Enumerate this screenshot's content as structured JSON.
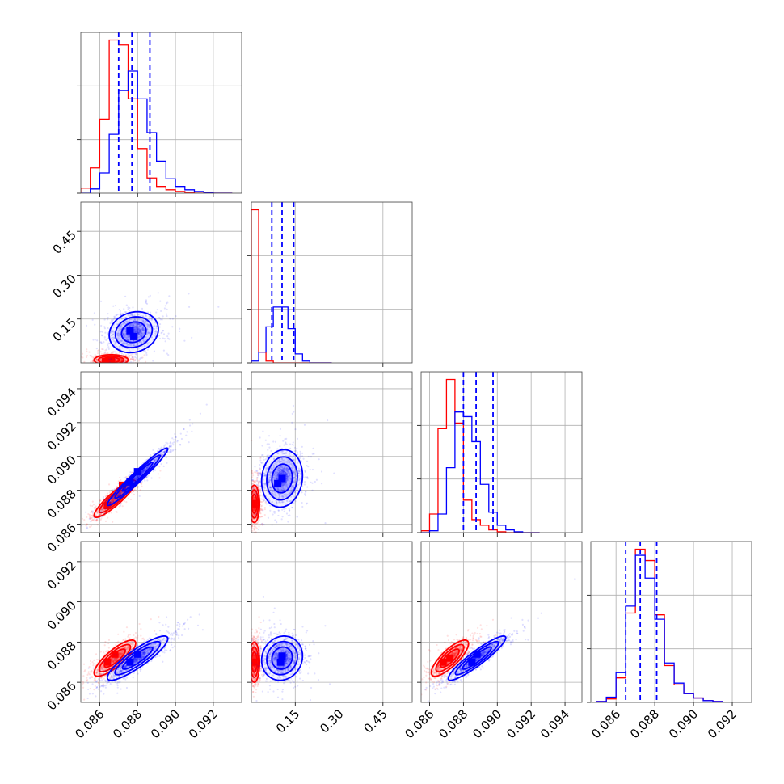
{
  "figure": {
    "type": "corner-plot",
    "colors": {
      "red": "#ff0000",
      "blue": "#0000ff"
    }
  },
  "chart_data": [
    {
      "type": "bar",
      "panel": "histogram-1",
      "grid": true,
      "x": [
        0.085,
        0.0855,
        0.086,
        0.0865,
        0.087,
        0.0875,
        0.088,
        0.0885,
        0.089,
        0.0895,
        0.09,
        0.0905,
        0.091,
        0.0915,
        0.092,
        0.0925
      ],
      "series": [
        {
          "color": "#ff0000",
          "values": [
            6,
            30,
            88,
            182,
            176,
            112,
            53,
            18,
            8,
            4,
            2,
            1,
            0,
            0,
            0,
            0
          ]
        },
        {
          "color": "#0000ff",
          "values": [
            0,
            5,
            24,
            70,
            122,
            145,
            112,
            72,
            38,
            17,
            8,
            4,
            2,
            1,
            0,
            0
          ]
        }
      ],
      "quantiles": [
        0.087,
        0.0877,
        0.08865
      ],
      "xlim": [
        0.085,
        0.0935
      ],
      "xticks": [
        0.086,
        0.088,
        0.09,
        0.092
      ]
    },
    {
      "type": "bar",
      "panel": "histogram-2",
      "grid": true,
      "x": [
        0.0,
        0.025,
        0.05,
        0.075,
        0.1,
        0.125,
        0.15,
        0.175,
        0.2,
        0.225,
        0.25
      ],
      "series": [
        {
          "color": "#ff0000",
          "values": [
            170,
            12,
            2,
            0,
            0,
            0,
            0,
            0,
            0,
            0,
            0
          ]
        },
        {
          "color": "#0000ff",
          "values": [
            2,
            12,
            40,
            62,
            62,
            38,
            10,
            2,
            0,
            0,
            0
          ]
        }
      ],
      "quantiles": [
        0.07,
        0.105,
        0.145
      ],
      "xlim": [
        0.0,
        0.55
      ],
      "xticks": [
        0.15,
        0.3,
        0.45
      ],
      "xtick_labels": [
        "0.15",
        "0.30",
        "0.45"
      ]
    },
    {
      "type": "bar",
      "panel": "histogram-3",
      "grid": true,
      "x": [
        0.0855,
        0.086,
        0.0865,
        0.087,
        0.0875,
        0.088,
        0.0885,
        0.089,
        0.0895,
        0.09,
        0.0905,
        0.091,
        0.0915,
        0.092
      ],
      "series": [
        {
          "color": "#ff0000",
          "values": [
            2,
            20,
            112,
            165,
            118,
            35,
            14,
            8,
            3,
            1,
            0,
            0,
            0,
            0
          ]
        },
        {
          "color": "#0000ff",
          "values": [
            0,
            2,
            20,
            70,
            130,
            125,
            98,
            52,
            22,
            8,
            3,
            1,
            0,
            0
          ]
        }
      ],
      "quantiles": [
        0.088,
        0.08875,
        0.08975
      ],
      "xlim": [
        0.0855,
        0.095
      ],
      "xticks": [
        0.086,
        0.088,
        0.09,
        0.092,
        0.094
      ]
    },
    {
      "type": "bar",
      "panel": "histogram-4",
      "grid": true,
      "x": [
        0.085,
        0.0855,
        0.086,
        0.0865,
        0.087,
        0.0875,
        0.088,
        0.0885,
        0.089,
        0.0895,
        0.09,
        0.0905,
        0.091,
        0.0915,
        0.092
      ],
      "series": [
        {
          "color": "#ff0000",
          "values": [
            1,
            4,
            28,
            102,
            175,
            162,
            100,
            42,
            20,
            10,
            5,
            2,
            1,
            0,
            0
          ]
        },
        {
          "color": "#0000ff",
          "values": [
            1,
            6,
            34,
            110,
            168,
            142,
            95,
            45,
            22,
            10,
            5,
            2,
            1,
            0,
            0
          ]
        }
      ],
      "quantiles": [
        0.0865,
        0.08725,
        0.0881
      ],
      "xlim": [
        0.0847,
        0.093
      ],
      "xticks": [
        0.086,
        0.088,
        0.09,
        0.092
      ]
    },
    {
      "type": "scatter",
      "panel": "row2-col1",
      "grid": true,
      "xlim": [
        0.085,
        0.0935
      ],
      "ylim": [
        0.0,
        0.55
      ],
      "yticks": [
        0.15,
        0.3,
        0.45
      ],
      "ytick_labels": [
        "0.15",
        "0.30",
        "0.45"
      ],
      "series": [
        {
          "color": "#ff0000",
          "cx": 0.0866,
          "cy": 0.01,
          "sx": 0.00045,
          "sy": 0.009,
          "rho": 0.0,
          "peaks": [
            [
              0.0866,
              0.008
            ],
            [
              0.0863,
              0.004
            ]
          ]
        },
        {
          "color": "#0000ff",
          "cx": 0.0878,
          "cy": 0.105,
          "sx": 0.00065,
          "sy": 0.035,
          "rho": 0.15,
          "peaks": [
            [
              0.0878,
              0.09
            ],
            [
              0.0876,
              0.11
            ]
          ]
        }
      ]
    },
    {
      "type": "scatter",
      "panel": "row3-col1",
      "grid": true,
      "xlim": [
        0.085,
        0.0935
      ],
      "ylim": [
        0.0855,
        0.095
      ],
      "yticks": [
        0.086,
        0.088,
        0.09,
        0.092,
        0.094
      ],
      "series": [
        {
          "color": "#ff0000",
          "cx": 0.0868,
          "cy": 0.0875,
          "sx": 0.00055,
          "sy": 0.00055,
          "rho": 0.9,
          "peaks": [
            [
              0.0864,
              0.0871
            ],
            [
              0.0872,
              0.0883
            ]
          ]
        },
        {
          "color": "#0000ff",
          "cx": 0.088,
          "cy": 0.0888,
          "sx": 0.0008,
          "sy": 0.00085,
          "rho": 0.97,
          "peaks": [
            [
              0.0876,
              0.0885
            ],
            [
              0.088,
              0.0891
            ]
          ]
        }
      ]
    },
    {
      "type": "scatter",
      "panel": "row3-col2",
      "grid": true,
      "xlim": [
        0.0,
        0.55
      ],
      "ylim": [
        0.0855,
        0.095
      ],
      "series": [
        {
          "color": "#ff0000",
          "cx": 0.01,
          "cy": 0.0872,
          "sx": 0.009,
          "sy": 0.00055,
          "rho": 0.0,
          "peaks": [
            [
              0.004,
              0.0872
            ]
          ]
        },
        {
          "color": "#0000ff",
          "cx": 0.105,
          "cy": 0.0887,
          "sx": 0.035,
          "sy": 0.00085,
          "rho": 0.1,
          "peaks": [
            [
              0.105,
              0.0887
            ],
            [
              0.09,
              0.0884
            ]
          ]
        }
      ]
    },
    {
      "type": "scatter",
      "panel": "row4-col1",
      "grid": true,
      "xlim": [
        0.085,
        0.0935
      ],
      "ylim": [
        0.085,
        0.093
      ],
      "yticks": [
        0.086,
        0.088,
        0.09,
        0.092
      ],
      "xticks": [
        0.086,
        0.088,
        0.09,
        0.092
      ],
      "series": [
        {
          "color": "#ff0000",
          "cx": 0.0868,
          "cy": 0.0872,
          "sx": 0.00055,
          "sy": 0.00045,
          "rho": 0.82,
          "peaks": [
            [
              0.0864,
              0.087
            ],
            [
              0.0868,
              0.0874
            ]
          ]
        },
        {
          "color": "#0000ff",
          "cx": 0.088,
          "cy": 0.0872,
          "sx": 0.0008,
          "sy": 0.00055,
          "rho": 0.88,
          "peaks": [
            [
              0.0876,
              0.087
            ],
            [
              0.088,
              0.0874
            ]
          ]
        }
      ]
    },
    {
      "type": "scatter",
      "panel": "row4-col2",
      "grid": true,
      "xlim": [
        0.0,
        0.55
      ],
      "ylim": [
        0.085,
        0.093
      ],
      "xticks": [
        0.15,
        0.3,
        0.45
      ],
      "xtick_labels": [
        "0.15",
        "0.30",
        "0.45"
      ],
      "series": [
        {
          "color": "#ff0000",
          "cx": 0.01,
          "cy": 0.087,
          "sx": 0.009,
          "sy": 0.0005,
          "rho": 0.0,
          "peaks": [
            [
              0.004,
              0.087
            ]
          ]
        },
        {
          "color": "#0000ff",
          "cx": 0.105,
          "cy": 0.0872,
          "sx": 0.035,
          "sy": 0.00055,
          "rho": 0.1,
          "peaks": [
            [
              0.1,
              0.087
            ],
            [
              0.105,
              0.0873
            ]
          ]
        }
      ]
    },
    {
      "type": "scatter",
      "panel": "row4-col3",
      "grid": true,
      "xlim": [
        0.0855,
        0.095
      ],
      "ylim": [
        0.085,
        0.093
      ],
      "xticks": [
        0.086,
        0.088,
        0.09,
        0.092,
        0.094
      ],
      "series": [
        {
          "color": "#ff0000",
          "cx": 0.0872,
          "cy": 0.0872,
          "sx": 0.00055,
          "sy": 0.00045,
          "rho": 0.8,
          "peaks": [
            [
              0.0868,
              0.087
            ],
            [
              0.0872,
              0.0872
            ]
          ]
        },
        {
          "color": "#0000ff",
          "cx": 0.0888,
          "cy": 0.0872,
          "sx": 0.00085,
          "sy": 0.00055,
          "rho": 0.92,
          "peaks": [
            [
              0.0885,
              0.087
            ],
            [
              0.0888,
              0.0874
            ]
          ]
        }
      ]
    }
  ]
}
